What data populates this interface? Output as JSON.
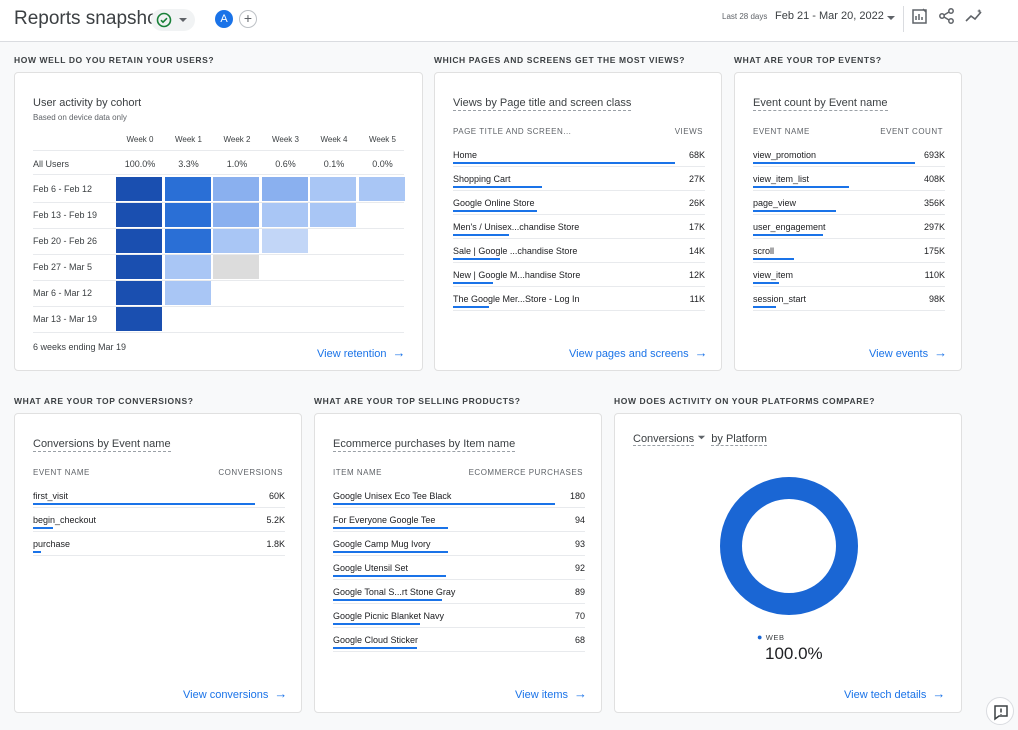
{
  "header": {
    "title": "Reports snapshot",
    "avatar_letter": "A",
    "plus": "+",
    "date_label": "Last 28 days",
    "date_range": "Feb 21 - Mar 20, 2022"
  },
  "sections": {
    "retain": "HOW WELL DO YOU RETAIN YOUR USERS?",
    "pages": "WHICH PAGES AND SCREENS GET THE MOST VIEWS?",
    "events": "WHAT ARE YOUR TOP EVENTS?",
    "conversions": "WHAT ARE YOUR TOP CONVERSIONS?",
    "products": "WHAT ARE YOUR TOP SELLING PRODUCTS?",
    "platforms": "HOW DOES ACTIVITY ON YOUR PLATFORMS COMPARE?"
  },
  "cohort": {
    "title": "User activity by cohort",
    "subtitle": "Based on device data only",
    "weeks": [
      "Week 0",
      "Week 1",
      "Week 2",
      "Week 3",
      "Week 4",
      "Week 5"
    ],
    "all_label": "All Users",
    "all_values": [
      "100.0%",
      "3.3%",
      "1.0%",
      "0.6%",
      "0.1%",
      "0.0%"
    ],
    "rows": [
      {
        "label": "Feb 6 - Feb 12",
        "cells": [
          "#1a4fb0",
          "#2a6fd6",
          "#8ab0ef",
          "#8ab0ef",
          "#a9c6f5",
          "#a9c6f5"
        ]
      },
      {
        "label": "Feb 13 - Feb 19",
        "cells": [
          "#1a4fb0",
          "#2a6fd6",
          "#8ab0ef",
          "#a9c6f5",
          "#a9c6f5"
        ]
      },
      {
        "label": "Feb 20 - Feb 26",
        "cells": [
          "#1a4fb0",
          "#2a6fd6",
          "#a9c6f5",
          "#c2d6f7"
        ]
      },
      {
        "label": "Feb 27 - Mar 5",
        "cells": [
          "#1a4fb0",
          "#a9c6f5",
          "#dcdcdc"
        ]
      },
      {
        "label": "Mar 6 - Mar 12",
        "cells": [
          "#1a4fb0",
          "#a9c6f5"
        ]
      },
      {
        "label": "Mar 13 - Mar 19",
        "cells": [
          "#1a4fb0"
        ]
      }
    ],
    "footer": "6 weeks ending Mar 19",
    "link": "View retention"
  },
  "pages": {
    "title": "Views by Page title and screen class",
    "col1": "PAGE TITLE AND SCREEN...",
    "col2": "VIEWS",
    "rows": [
      {
        "name": "Home",
        "value": "68K",
        "pct": 1.0
      },
      {
        "name": "Shopping Cart",
        "value": "27K",
        "pct": 0.4
      },
      {
        "name": "Google Online Store",
        "value": "26K",
        "pct": 0.38
      },
      {
        "name": "Men's / Unisex...chandise Store",
        "value": "17K",
        "pct": 0.25
      },
      {
        "name": "Sale | Google ...chandise Store",
        "value": "14K",
        "pct": 0.21
      },
      {
        "name": "New | Google M...handise Store",
        "value": "12K",
        "pct": 0.18
      },
      {
        "name": "The Google Mer...Store - Log In",
        "value": "11K",
        "pct": 0.16
      }
    ],
    "link": "View pages and screens"
  },
  "events": {
    "title": "Event count by Event name",
    "col1": "EVENT NAME",
    "col2": "EVENT COUNT",
    "rows": [
      {
        "name": "view_promotion",
        "value": "693K",
        "pct": 1.0
      },
      {
        "name": "view_item_list",
        "value": "408K",
        "pct": 0.59
      },
      {
        "name": "page_view",
        "value": "356K",
        "pct": 0.51
      },
      {
        "name": "user_engagement",
        "value": "297K",
        "pct": 0.43
      },
      {
        "name": "scroll",
        "value": "175K",
        "pct": 0.25
      },
      {
        "name": "view_item",
        "value": "110K",
        "pct": 0.16
      },
      {
        "name": "session_start",
        "value": "98K",
        "pct": 0.14
      }
    ],
    "link": "View events"
  },
  "conversions": {
    "title": "Conversions by Event name",
    "col1": "EVENT NAME",
    "col2": "CONVERSIONS",
    "rows": [
      {
        "name": "first_visit",
        "value": "60K",
        "pct": 1.0
      },
      {
        "name": "begin_checkout",
        "value": "5.2K",
        "pct": 0.09
      },
      {
        "name": "purchase",
        "value": "1.8K",
        "pct": 0.03
      }
    ],
    "link": "View conversions"
  },
  "products": {
    "title": "Ecommerce purchases by Item name",
    "col1": "ITEM NAME",
    "col2": "ECOMMERCE PURCHASES",
    "rows": [
      {
        "name": "Google Unisex Eco Tee Black",
        "value": "180",
        "pct": 1.0
      },
      {
        "name": "For Everyone Google Tee",
        "value": "94",
        "pct": 0.52
      },
      {
        "name": "Google Camp Mug Ivory",
        "value": "93",
        "pct": 0.52
      },
      {
        "name": "Google Utensil Set",
        "value": "92",
        "pct": 0.51
      },
      {
        "name": "Google Tonal S...rt Stone Gray",
        "value": "89",
        "pct": 0.49
      },
      {
        "name": "Google Picnic Blanket Navy",
        "value": "70",
        "pct": 0.39
      },
      {
        "name": "Google Cloud Sticker",
        "value": "68",
        "pct": 0.38
      }
    ],
    "link": "View items"
  },
  "platforms": {
    "metric": "Conversions",
    "by": "by Platform",
    "legend": "WEB",
    "value": "100.0%",
    "link": "View tech details"
  },
  "colors": {
    "accent": "#1a73e8",
    "donut": "#1a66d4"
  },
  "chart_data": {
    "type": "pie",
    "title": "Conversions by Platform",
    "categories": [
      "WEB"
    ],
    "values": [
      100.0
    ]
  }
}
